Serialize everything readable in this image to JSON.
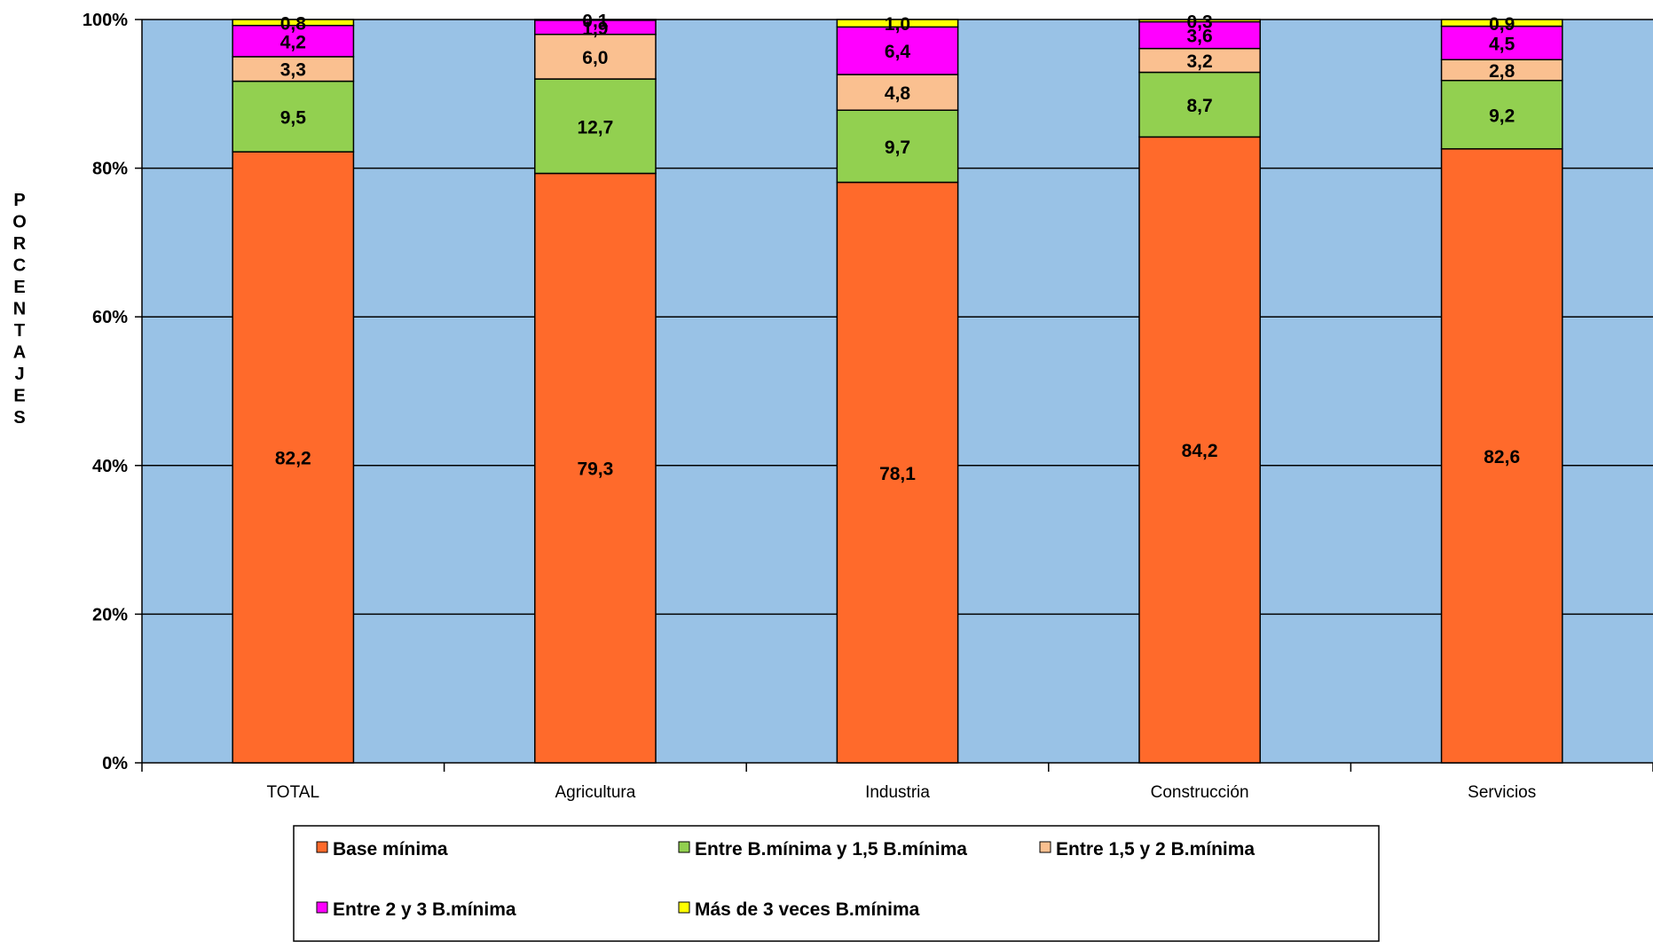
{
  "chart_data": {
    "type": "bar",
    "stacked": true,
    "percent_stacked": true,
    "title": "",
    "xlabel": "",
    "ylabel": "PORCENTAJES",
    "ylim": [
      0,
      100
    ],
    "yticks": [
      "0%",
      "20%",
      "40%",
      "60%",
      "80%",
      "100%"
    ],
    "ytick_values": [
      0,
      20,
      40,
      60,
      80,
      100
    ],
    "grid": true,
    "legend_position": "bottom",
    "plot_background": "#99C2E6",
    "categories": [
      "TOTAL",
      "Agricultura",
      "Industria",
      "Construcción",
      "Servicios"
    ],
    "series": [
      {
        "name": "Base mínima",
        "color": "#FF6A2B",
        "values": [
          82.2,
          79.3,
          78.1,
          84.2,
          82.6
        ],
        "labels": [
          "82,2",
          "79,3",
          "78,1",
          "84,2",
          "82,6"
        ]
      },
      {
        "name": "Entre B.mínima y 1,5 B.mínima",
        "color": "#92D050",
        "values": [
          9.5,
          12.7,
          9.7,
          8.7,
          9.2
        ],
        "labels": [
          "9,5",
          "12,7",
          "9,7",
          "8,7",
          "9,2"
        ]
      },
      {
        "name": "Entre 1,5 y 2 B.mínima",
        "color": "#FAC090",
        "values": [
          3.3,
          6.0,
          4.8,
          3.2,
          2.8
        ],
        "labels": [
          "3,3",
          "6,0",
          "4,8",
          "3,2",
          "2,8"
        ]
      },
      {
        "name": "Entre 2 y 3 B.mínima",
        "color": "#FF00FF",
        "values": [
          4.2,
          1.9,
          6.4,
          3.6,
          4.5
        ],
        "labels": [
          "4,2",
          "1,9",
          "6,4",
          "3,6",
          "4,5"
        ]
      },
      {
        "name": "Más de 3 veces B.mínima",
        "color": "#FFFF00",
        "values": [
          0.8,
          0.1,
          1.0,
          0.3,
          0.9
        ],
        "labels": [
          "0,8",
          "0,1",
          "1,0",
          "0,3",
          "0,9"
        ]
      }
    ]
  }
}
